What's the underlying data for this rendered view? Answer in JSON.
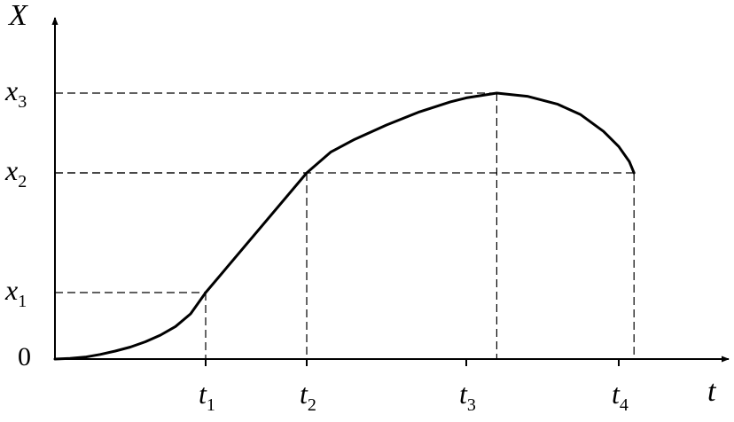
{
  "chart_data": {
    "type": "line",
    "y_axis_label": "X",
    "x_axis_label": "t",
    "origin_label": "0",
    "x_ticks": [
      {
        "base": "t",
        "sub": "1",
        "value": 1
      },
      {
        "base": "t",
        "sub": "2",
        "value": 2
      },
      {
        "base": "t",
        "sub": "3",
        "value": 3
      },
      {
        "base": "t",
        "sub": "4",
        "value": 4
      }
    ],
    "y_ticks": [
      {
        "base": "x",
        "sub": "1",
        "value": 1
      },
      {
        "base": "x",
        "sub": "2",
        "value": 2
      },
      {
        "base": "x",
        "sub": "3",
        "value": 3
      }
    ],
    "curve": [
      {
        "x": 0.0,
        "y": 0.0
      },
      {
        "x": 0.1,
        "y": 0.01
      },
      {
        "x": 0.2,
        "y": 0.03
      },
      {
        "x": 0.3,
        "y": 0.07
      },
      {
        "x": 0.4,
        "y": 0.12
      },
      {
        "x": 0.5,
        "y": 0.18
      },
      {
        "x": 0.6,
        "y": 0.26
      },
      {
        "x": 0.7,
        "y": 0.36
      },
      {
        "x": 0.8,
        "y": 0.49
      },
      {
        "x": 0.9,
        "y": 0.68
      },
      {
        "x": 1.0,
        "y": 1.0
      },
      {
        "x": 2.0,
        "y": 2.0
      },
      {
        "x": 2.15,
        "y": 2.26
      },
      {
        "x": 2.3,
        "y": 2.42
      },
      {
        "x": 2.5,
        "y": 2.6
      },
      {
        "x": 2.7,
        "y": 2.76
      },
      {
        "x": 2.9,
        "y": 2.89
      },
      {
        "x": 3.0,
        "y": 2.94
      },
      {
        "x": 3.2,
        "y": 3.0
      },
      {
        "x": 3.4,
        "y": 2.96
      },
      {
        "x": 3.6,
        "y": 2.86
      },
      {
        "x": 3.75,
        "y": 2.73
      },
      {
        "x": 3.9,
        "y": 2.52
      },
      {
        "x": 4.0,
        "y": 2.33
      },
      {
        "x": 4.07,
        "y": 2.14
      },
      {
        "x": 4.1,
        "y": 2.0
      }
    ],
    "guides": [
      {
        "x": 1.0,
        "y": 1.0
      },
      {
        "x": 2.0,
        "y": 2.0
      },
      {
        "x": 3.2,
        "y": 3.0
      },
      {
        "x": 4.1,
        "y": 2.0
      }
    ]
  }
}
